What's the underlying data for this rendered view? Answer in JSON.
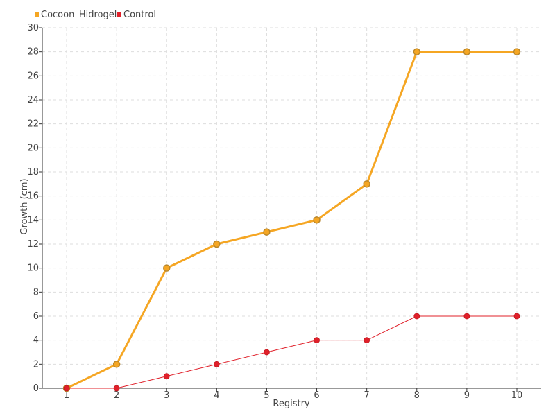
{
  "chart_data": {
    "type": "line",
    "title": "",
    "xlabel": "Registry",
    "ylabel": "Growth (cm)",
    "x": [
      1,
      2,
      3,
      4,
      5,
      6,
      7,
      8,
      9,
      10
    ],
    "xticks": [
      "1",
      "2",
      "3",
      "4",
      "5",
      "6",
      "7",
      "8",
      "9",
      "10"
    ],
    "yticks": [
      "0",
      "2",
      "4",
      "6",
      "8",
      "10",
      "12",
      "14",
      "16",
      "18",
      "20",
      "22",
      "24",
      "26",
      "28",
      "30"
    ],
    "ylim": [
      0,
      30
    ],
    "grid": true,
    "legend_position": "top-left",
    "series": [
      {
        "name": "Cocoon_Hidrogel",
        "color": "#f5a623",
        "marker_fill": "#f5a623",
        "marker_stroke": "#b8862b",
        "values": [
          0,
          2,
          10,
          12,
          13,
          14,
          17,
          28,
          28,
          28
        ]
      },
      {
        "name": "Control",
        "color": "#e0202a",
        "marker_fill": "#e0202a",
        "marker_stroke": "#c01820",
        "values": [
          0,
          0,
          1,
          2,
          3,
          4,
          4,
          6,
          6,
          6
        ]
      }
    ]
  }
}
